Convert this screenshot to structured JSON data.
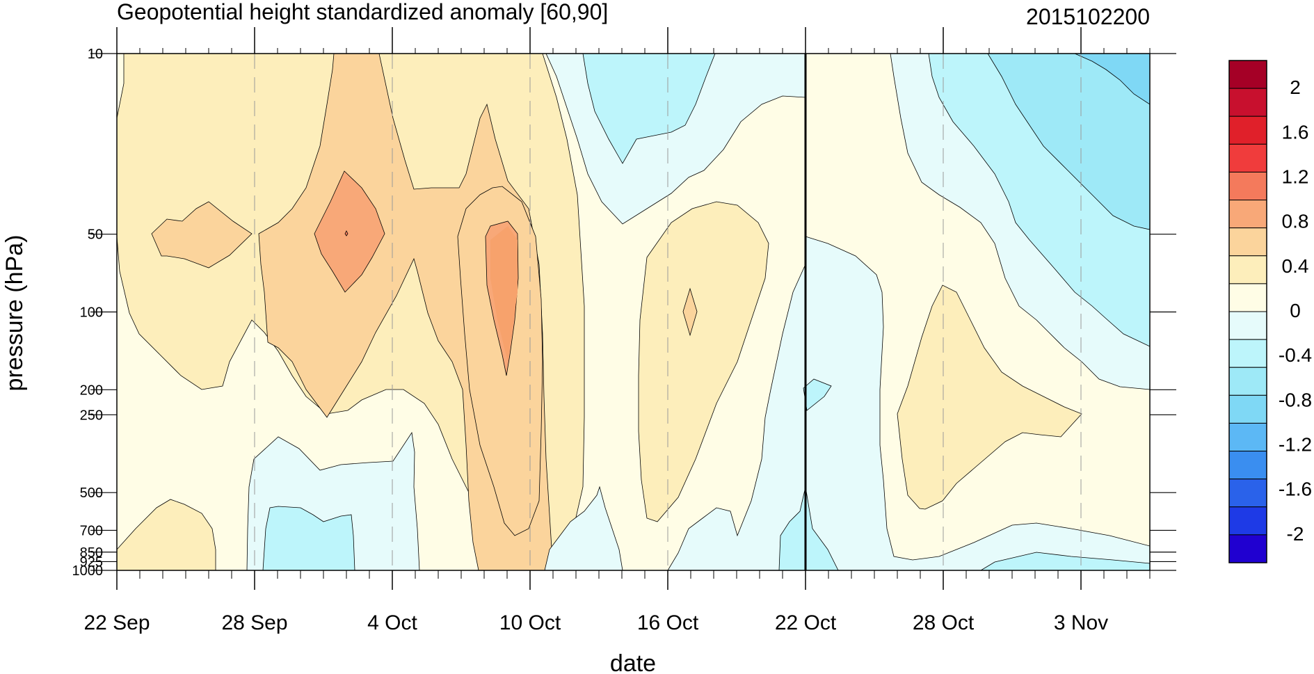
{
  "chart_data": {
    "type": "heatmap",
    "title": "Geopotential height standardized anomaly [60,90]",
    "date_stamp": "2015102200",
    "xlabel": "date",
    "ylabel": "pressure (hPa)",
    "x_ticks": [
      "22 Sep",
      "28 Sep",
      "4 Oct",
      "10 Oct",
      "16 Oct",
      "22 Oct",
      "28 Oct",
      "3 Nov"
    ],
    "x_range": [
      "22 Sep",
      "6 Nov"
    ],
    "y_ticks": [
      "10",
      "50",
      "100",
      "200",
      "250",
      "500",
      "700",
      "850",
      "925",
      "1000"
    ],
    "y_scale": "log",
    "y_range": [
      10,
      1000
    ],
    "marked_date": "22 Oct",
    "colorbar": {
      "labels": [
        "2",
        "1.6",
        "1.2",
        "0.8",
        "0.4",
        "0",
        "-0.4",
        "-0.8",
        "-1.2",
        "-1.6",
        "-2"
      ],
      "colors": [
        "#a50026",
        "#c8102e",
        "#e0202a",
        "#f03c3c",
        "#f47a5c",
        "#f8a878",
        "#fbd49c",
        "#fdeebb",
        "#fffde6",
        "#e6fbfb",
        "#bdf5fb",
        "#9ee9f7",
        "#7fd8f5",
        "#5cb8f5",
        "#3a8ef0",
        "#2a62ea",
        "#1e3ae6",
        "#2000d0"
      ]
    },
    "regions": [
      {
        "level": "0 to 0.4",
        "date": "22 Sep - 6 Nov",
        "pressure": "10 - 1000"
      },
      {
        "level": "0.4 to 0.8",
        "date": "22 Sep - 10 Oct",
        "pressure": "10 - 250"
      },
      {
        "level": "0.4 to 0.8",
        "date": "7 Oct - 11 Oct",
        "pressure": "10 - 1000"
      },
      {
        "level": "0.4 to 0.8",
        "date": "15 Oct - 19 Oct",
        "pressure": "50 - 650"
      },
      {
        "level": "0.4 to 0.8",
        "date": "26 Oct - 2 Nov",
        "pressure": "90 - 550"
      },
      {
        "level": "0.4 to 0.8",
        "date": "22 Sep - 26 Sep",
        "pressure": "550 - 1000"
      },
      {
        "level": "0.8 to 1.2",
        "date": "24 Sep - 28 Sep",
        "pressure": "45 - 70"
      },
      {
        "level": "0.8 to 1.2",
        "date": "30 Sep - 10 Oct",
        "pressure": "35 - 260"
      },
      {
        "level": "1.2 to 1.6",
        "date": "8 Oct - 9 Oct",
        "pressure": "55 - 180"
      },
      {
        "level": "0 to -0.4",
        "date": "10 Oct - 22 Oct",
        "pressure": "10 - 60"
      },
      {
        "level": "0 to -0.4",
        "date": "28 Sep - 3 Oct",
        "pressure": "300 - 1000"
      },
      {
        "level": "0 to -0.4",
        "date": "22 Oct - 26 Oct",
        "pressure": "55 - 1000"
      },
      {
        "level": "0 to -0.4",
        "date": "26 Oct - 6 Nov",
        "pressure": "10 - 220"
      },
      {
        "level": "0 to -0.4",
        "date": "11 Oct - 16 Oct",
        "pressure": "450 - 1000"
      },
      {
        "level": "0 to -0.4",
        "date": "26 Oct - 6 Nov",
        "pressure": "650 - 1000"
      },
      {
        "level": "-0.4 to -0.8",
        "date": "12 Oct - 18 Oct",
        "pressure": "10 - 35"
      },
      {
        "level": "-0.4 to -0.8",
        "date": "29 Sep - 2 Oct",
        "pressure": "580 - 1000"
      },
      {
        "level": "-0.4 to -0.8",
        "date": "27 Oct - 6 Nov",
        "pressure": "10 - 130"
      },
      {
        "level": "-0.8 to -1.2",
        "date": "5 Nov - 6 Nov",
        "pressure": "10 - 17"
      }
    ]
  }
}
